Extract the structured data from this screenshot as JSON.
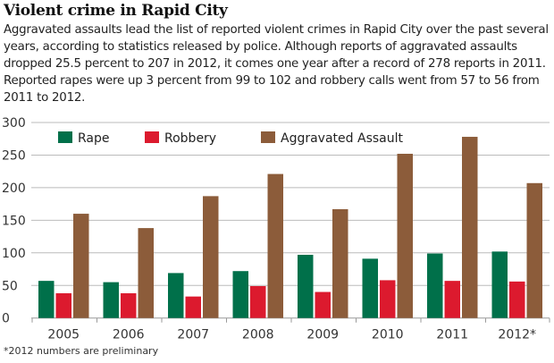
{
  "title": "Violent crime in Rapid City",
  "description": "Aggravated assaults lead the list of reported violent crimes in Rapid City over the past several years, according to statistics released by police. Although reports of aggravated assaults dropped 25.5 percent to 207 in 2012, it comes one year after a record of 278 reports in 2011. Reported rapes were up 3 percent from 99 to 102 and robbery calls went from 57 to 56 from 2011 to 2012.",
  "footnote": "*2012 numbers are preliminary",
  "chart_data": {
    "type": "bar",
    "categories": [
      "2005",
      "2006",
      "2007",
      "2008",
      "2009",
      "2010",
      "2011",
      "2012*"
    ],
    "series": [
      {
        "name": "Rape",
        "color": "#00704a",
        "values": [
          57,
          55,
          69,
          72,
          97,
          91,
          99,
          102
        ]
      },
      {
        "name": "Robbery",
        "color": "#dc1a2e",
        "values": [
          38,
          38,
          33,
          49,
          40,
          58,
          57,
          56
        ]
      },
      {
        "name": "Aggravated Assault",
        "color": "#8c5c3a",
        "values": [
          160,
          138,
          187,
          221,
          167,
          252,
          278,
          207
        ]
      }
    ],
    "yticks": [
      0,
      50,
      100,
      150,
      200,
      250,
      300
    ],
    "ylim": [
      0,
      300
    ],
    "grid": true,
    "legend": "top-left"
  }
}
